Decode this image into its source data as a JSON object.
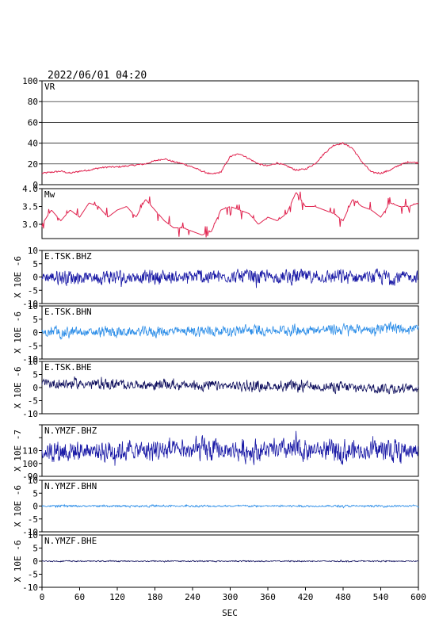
{
  "header": {
    "datetime": "2022/06/01 04:20"
  },
  "colors": {
    "vr": "#e0224e",
    "mw": "#e0224e",
    "dark_blue": "#1a1aa6",
    "light_blue": "#2f8fe8",
    "navy": "#10105e"
  },
  "chart_data": [
    {
      "type": "line",
      "panel_label": "VR",
      "ylim": [
        0,
        100
      ],
      "yticks": [
        0,
        20,
        40,
        60,
        80,
        100
      ],
      "grid": true,
      "x": [
        0,
        15,
        30,
        45,
        60,
        75,
        90,
        105,
        120,
        135,
        150,
        165,
        180,
        195,
        210,
        225,
        240,
        255,
        270,
        285,
        300,
        315,
        330,
        345,
        360,
        375,
        390,
        405,
        420,
        435,
        450,
        465,
        480,
        495,
        510,
        525,
        540,
        555,
        570,
        585,
        600
      ],
      "values": [
        11,
        12,
        13,
        11,
        13,
        14,
        16,
        17,
        17,
        18,
        19,
        20,
        23,
        25,
        22,
        20,
        17,
        13,
        10,
        12,
        27,
        30,
        25,
        20,
        18,
        21,
        18,
        14,
        15,
        20,
        30,
        38,
        40,
        35,
        22,
        12,
        11,
        14,
        19,
        22,
        21
      ]
    },
    {
      "type": "line",
      "panel_label": "Mw",
      "ylim": [
        2.6,
        4.0
      ],
      "yticks": [
        3.0,
        3.5,
        4.0
      ],
      "x": [
        0,
        15,
        30,
        45,
        60,
        75,
        90,
        105,
        120,
        135,
        150,
        165,
        180,
        195,
        210,
        225,
        240,
        255,
        270,
        285,
        300,
        315,
        330,
        345,
        360,
        375,
        390,
        405,
        420,
        435,
        450,
        465,
        480,
        495,
        510,
        525,
        540,
        555,
        570,
        585,
        600
      ],
      "values": [
        3.0,
        3.4,
        3.1,
        3.4,
        3.2,
        3.6,
        3.5,
        3.2,
        3.4,
        3.5,
        3.2,
        3.7,
        3.4,
        3.1,
        2.9,
        2.9,
        2.8,
        2.7,
        2.8,
        3.4,
        3.5,
        3.4,
        3.3,
        3.0,
        3.2,
        3.1,
        3.3,
        3.9,
        3.5,
        3.5,
        3.4,
        3.3,
        3.1,
        3.7,
        3.5,
        3.4,
        3.2,
        3.6,
        3.5,
        3.5,
        3.6
      ]
    },
    {
      "type": "line",
      "panel_label": "E.TSK.BHZ",
      "unit_label": "X 10E -6",
      "ylim": [
        -10,
        10
      ],
      "yticks": [
        -10,
        -5,
        0,
        5,
        10
      ],
      "amplitude": 3.5,
      "trend": [
        0,
        0
      ],
      "color_key": "dark_blue"
    },
    {
      "type": "line",
      "panel_label": "E.TSK.BHN",
      "unit_label": "X 10E -6",
      "ylim": [
        -10,
        10
      ],
      "yticks": [
        -10,
        -5,
        0,
        5,
        10
      ],
      "amplitude": 2.6,
      "trend": [
        -0.2,
        1.5
      ],
      "color_key": "light_blue"
    },
    {
      "type": "line",
      "panel_label": "E.TSK.BHE",
      "unit_label": "X 10E -6",
      "ylim": [
        -10,
        10
      ],
      "yticks": [
        -10,
        -5,
        0,
        5,
        10
      ],
      "amplitude": 2.5,
      "trend": [
        1.6,
        -0.3
      ],
      "color_key": "navy"
    },
    {
      "type": "line",
      "panel_label": "N.YMZF.BHZ",
      "unit_label": "X 10E -7",
      "ylim": [
        -10,
        10
      ],
      "yticks": [
        -90,
        100,
        110
      ],
      "amplitude": 5.5,
      "trend": [
        0,
        0
      ],
      "color_key": "dark_blue"
    },
    {
      "type": "line",
      "panel_label": "N.YMZF.BHN",
      "unit_label": "X 10E -6",
      "ylim": [
        -10,
        10
      ],
      "yticks": [
        -10,
        -5,
        0,
        5,
        10
      ],
      "amplitude": 0.5,
      "trend": [
        0,
        0
      ],
      "color_key": "light_blue"
    },
    {
      "type": "line",
      "panel_label": "N.YMZF.BHE",
      "unit_label": "X 10E -6",
      "ylim": [
        -10,
        10
      ],
      "yticks": [
        -10,
        -5,
        0,
        5,
        10
      ],
      "amplitude": 0.3,
      "trend": [
        0,
        0
      ],
      "color_key": "navy"
    }
  ],
  "x_axis": {
    "label": "SEC",
    "xlim": [
      0,
      600
    ],
    "ticks": [
      0,
      60,
      120,
      180,
      240,
      300,
      360,
      420,
      480,
      540,
      600
    ]
  }
}
